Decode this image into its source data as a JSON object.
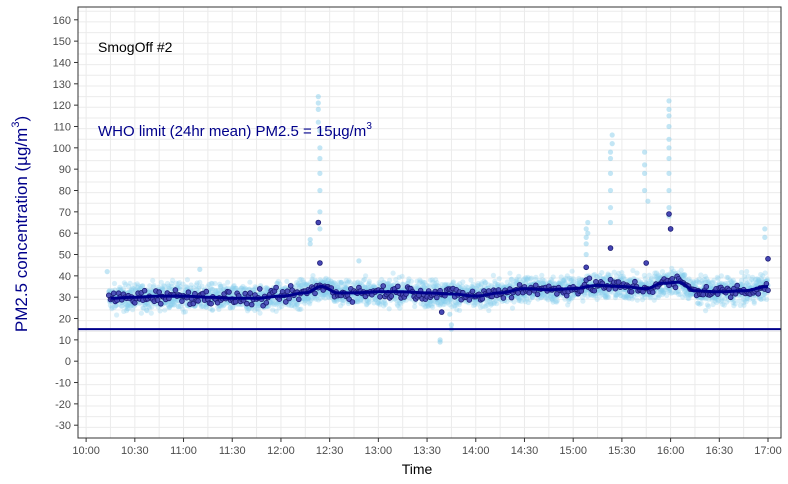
{
  "chart_data": {
    "type": "scatter",
    "annotation_label": "SmogOff #2",
    "limit_label_prefix": "WHO limit (24hr mean)  PM2.5 = 15µg/m",
    "limit_label_sup": "3",
    "xlabel": "Time",
    "ylabel_prefix": "PM2.5 concentration (µg/m",
    "ylabel_sup": "3",
    "ylabel_suffix": ")",
    "xlim": [
      "09:55",
      "17:08"
    ],
    "ylim": [
      -36,
      166
    ],
    "x_ticks": [
      "10:00",
      "10:30",
      "11:00",
      "11:30",
      "12:00",
      "12:30",
      "13:00",
      "13:30",
      "14:00",
      "14:30",
      "15:00",
      "15:30",
      "16:00",
      "16:30",
      "17:00"
    ],
    "y_ticks": [
      -30,
      -20,
      -10,
      0,
      10,
      20,
      30,
      40,
      50,
      60,
      70,
      80,
      90,
      100,
      110,
      120,
      130,
      140,
      150,
      160
    ],
    "grid": true,
    "limit_line_value": 15,
    "colors": {
      "raw_points": "#87ceeb",
      "mean_points": "#191970",
      "smooth_line": "#00008b",
      "limit_line": "#00008b",
      "limit_text": "#00008b",
      "ylabel": "#00008b",
      "grid": "#ebebeb",
      "panel_border": "#333333"
    },
    "smooth": {
      "x": [
        "10:15",
        "10:30",
        "10:45",
        "11:00",
        "11:15",
        "11:30",
        "11:45",
        "12:00",
        "12:15",
        "12:25",
        "12:35",
        "12:45",
        "13:00",
        "13:15",
        "13:30",
        "13:45",
        "14:00",
        "14:15",
        "14:30",
        "14:45",
        "15:00",
        "15:15",
        "15:30",
        "15:45",
        "15:55",
        "16:05",
        "16:15",
        "16:30",
        "16:45",
        "17:00"
      ],
      "y": [
        29.5,
        30,
        30.5,
        30.5,
        30,
        29.5,
        29.5,
        30.5,
        32,
        35,
        32,
        32,
        32.5,
        32.5,
        32,
        31.5,
        30.5,
        32,
        34,
        33.5,
        34,
        35.5,
        35,
        34,
        36.5,
        37,
        33,
        32.5,
        33,
        35
      ]
    },
    "outliers": {
      "x": [
        "12:23",
        "12:23",
        "12:23",
        "12:23",
        "12:24",
        "12:24",
        "12:24",
        "12:24",
        "12:24",
        "12:24",
        "12:24",
        "12:18",
        "12:18",
        "15:24",
        "15:24",
        "15:23",
        "15:23",
        "15:23",
        "15:23",
        "15:23",
        "15:23",
        "15:44",
        "15:44",
        "15:44",
        "15:44",
        "15:46",
        "15:59",
        "15:59",
        "15:59",
        "15:59",
        "15:59",
        "15:59",
        "15:59",
        "15:59",
        "15:59",
        "15:59",
        "15:59",
        "13:38",
        "13:38",
        "13:45",
        "13:45",
        "13:44",
        "15:08",
        "15:08",
        "15:08",
        "15:08",
        "15:09",
        "15:09",
        "16:58",
        "16:58",
        "11:10",
        "12:48",
        "10:13"
      ],
      "y": [
        124,
        121,
        118,
        112,
        108,
        100,
        95,
        88,
        80,
        70,
        62,
        57,
        55,
        106,
        102,
        98,
        95,
        88,
        80,
        72,
        65,
        98,
        92,
        88,
        80,
        75,
        122,
        118,
        115,
        110,
        104,
        100,
        95,
        88,
        80,
        72,
        68,
        9,
        10,
        17,
        15,
        22,
        62,
        58,
        55,
        50,
        65,
        60,
        62,
        58,
        43,
        47,
        42
      ]
    },
    "mean_outliers": {
      "x": [
        "12:23",
        "12:24",
        "15:23",
        "15:45",
        "15:59",
        "16:00",
        "15:08",
        "13:39",
        "17:00"
      ],
      "y": [
        65,
        46,
        53,
        46,
        69,
        62,
        44,
        23,
        48
      ]
    }
  }
}
